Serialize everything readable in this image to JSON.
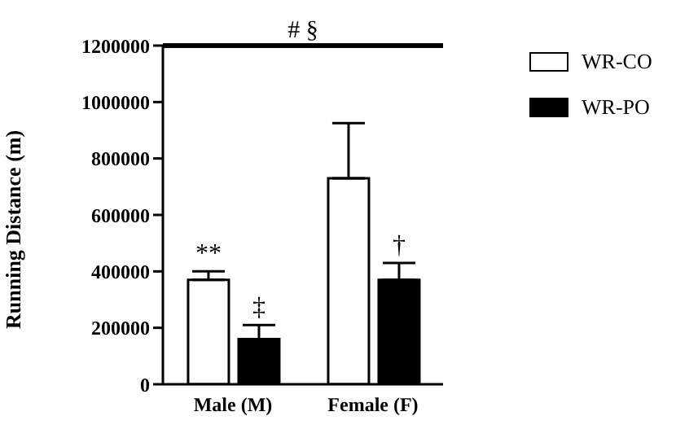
{
  "chart_data": {
    "type": "bar",
    "ylabel": "Running Distance (m)",
    "categories": [
      "Male (M)",
      "Female (F)"
    ],
    "series": [
      {
        "name": "WR-CO",
        "color": "#ffffff",
        "values": [
          370000,
          730000
        ],
        "errors": [
          [
            370000,
            400000
          ],
          [
            730000,
            925000
          ]
        ],
        "value_labels": [
          "**",
          null
        ]
      },
      {
        "name": "WR-PO",
        "color": "#000000",
        "values": [
          160000,
          370000
        ],
        "errors": [
          [
            160000,
            210000
          ],
          [
            370000,
            430000
          ]
        ],
        "value_labels": [
          "‡",
          "†"
        ]
      }
    ],
    "ylim": [
      0,
      1200000
    ],
    "yticks": [
      0,
      200000,
      400000,
      600000,
      800000,
      1000000,
      1200000
    ],
    "ref_lines": [
      {
        "axis": "y",
        "value": 1200000,
        "label": "# §",
        "color": "#000000"
      }
    ],
    "grid": false,
    "legend": "top right"
  }
}
